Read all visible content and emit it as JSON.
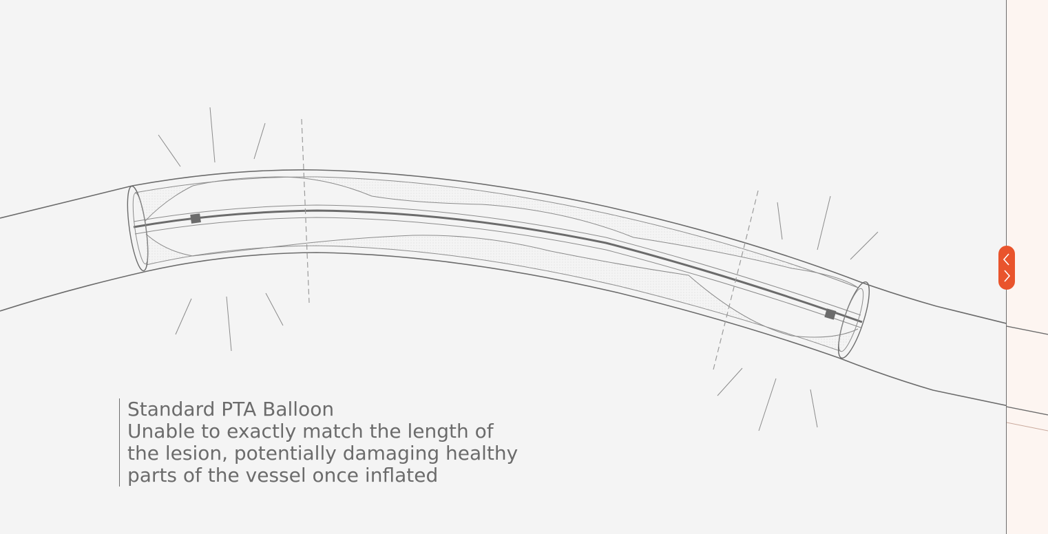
{
  "caption": {
    "title": "Standard PTA Balloon",
    "lines": [
      "Unable to exactly match the length of",
      "the lesion, potentially damaging healthy",
      "parts of the vessel once inflated"
    ]
  },
  "colors": {
    "background": "#f4f4f4",
    "line": "#6b6b6b",
    "panel": "#fdf5f1",
    "accent": "#e9542c"
  },
  "slider": {
    "icon_left": "chevron-left-icon",
    "icon_right": "chevron-right-icon"
  }
}
